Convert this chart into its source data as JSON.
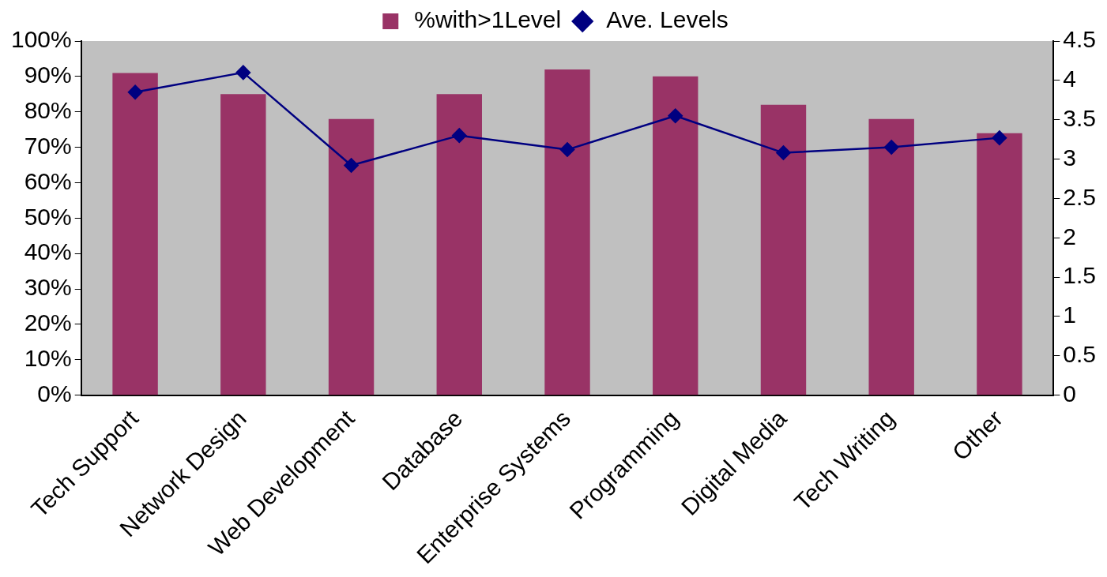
{
  "chart_data": {
    "type": "bar",
    "categories": [
      "Tech Support",
      "Network Design",
      "Web Development",
      "Database",
      "Enterprise Systems",
      "Programming",
      "Digital Media",
      "Tech Writing",
      "Other"
    ],
    "series": [
      {
        "name": "%with>1Level",
        "color": "#993366",
        "values": [
          91,
          85,
          78,
          85,
          92,
          90,
          82,
          78,
          74
        ]
      },
      {
        "name": "Ave. Levels",
        "type": "line",
        "axis": "y2",
        "color": "#000080",
        "marker": "diamond",
        "values": [
          3.85,
          4.1,
          2.92,
          3.3,
          3.12,
          3.55,
          3.08,
          3.15,
          3.27
        ]
      }
    ],
    "ylim": [
      0,
      100
    ],
    "yticks": [
      {
        "value": 0,
        "label": "0%"
      },
      {
        "value": 10,
        "label": "10%"
      },
      {
        "value": 20,
        "label": "20%"
      },
      {
        "value": 30,
        "label": "30%"
      },
      {
        "value": 40,
        "label": "40%"
      },
      {
        "value": 50,
        "label": "50%"
      },
      {
        "value": 60,
        "label": "60%"
      },
      {
        "value": 70,
        "label": "70%"
      },
      {
        "value": 80,
        "label": "80%"
      },
      {
        "value": 90,
        "label": "90%"
      },
      {
        "value": 100,
        "label": "100%"
      }
    ],
    "y2lim": [
      0,
      4.5
    ],
    "y2ticks": [
      0,
      0.5,
      1,
      1.5,
      2,
      2.5,
      3,
      3.5,
      4,
      4.5
    ],
    "grid": false,
    "legend": "top"
  }
}
